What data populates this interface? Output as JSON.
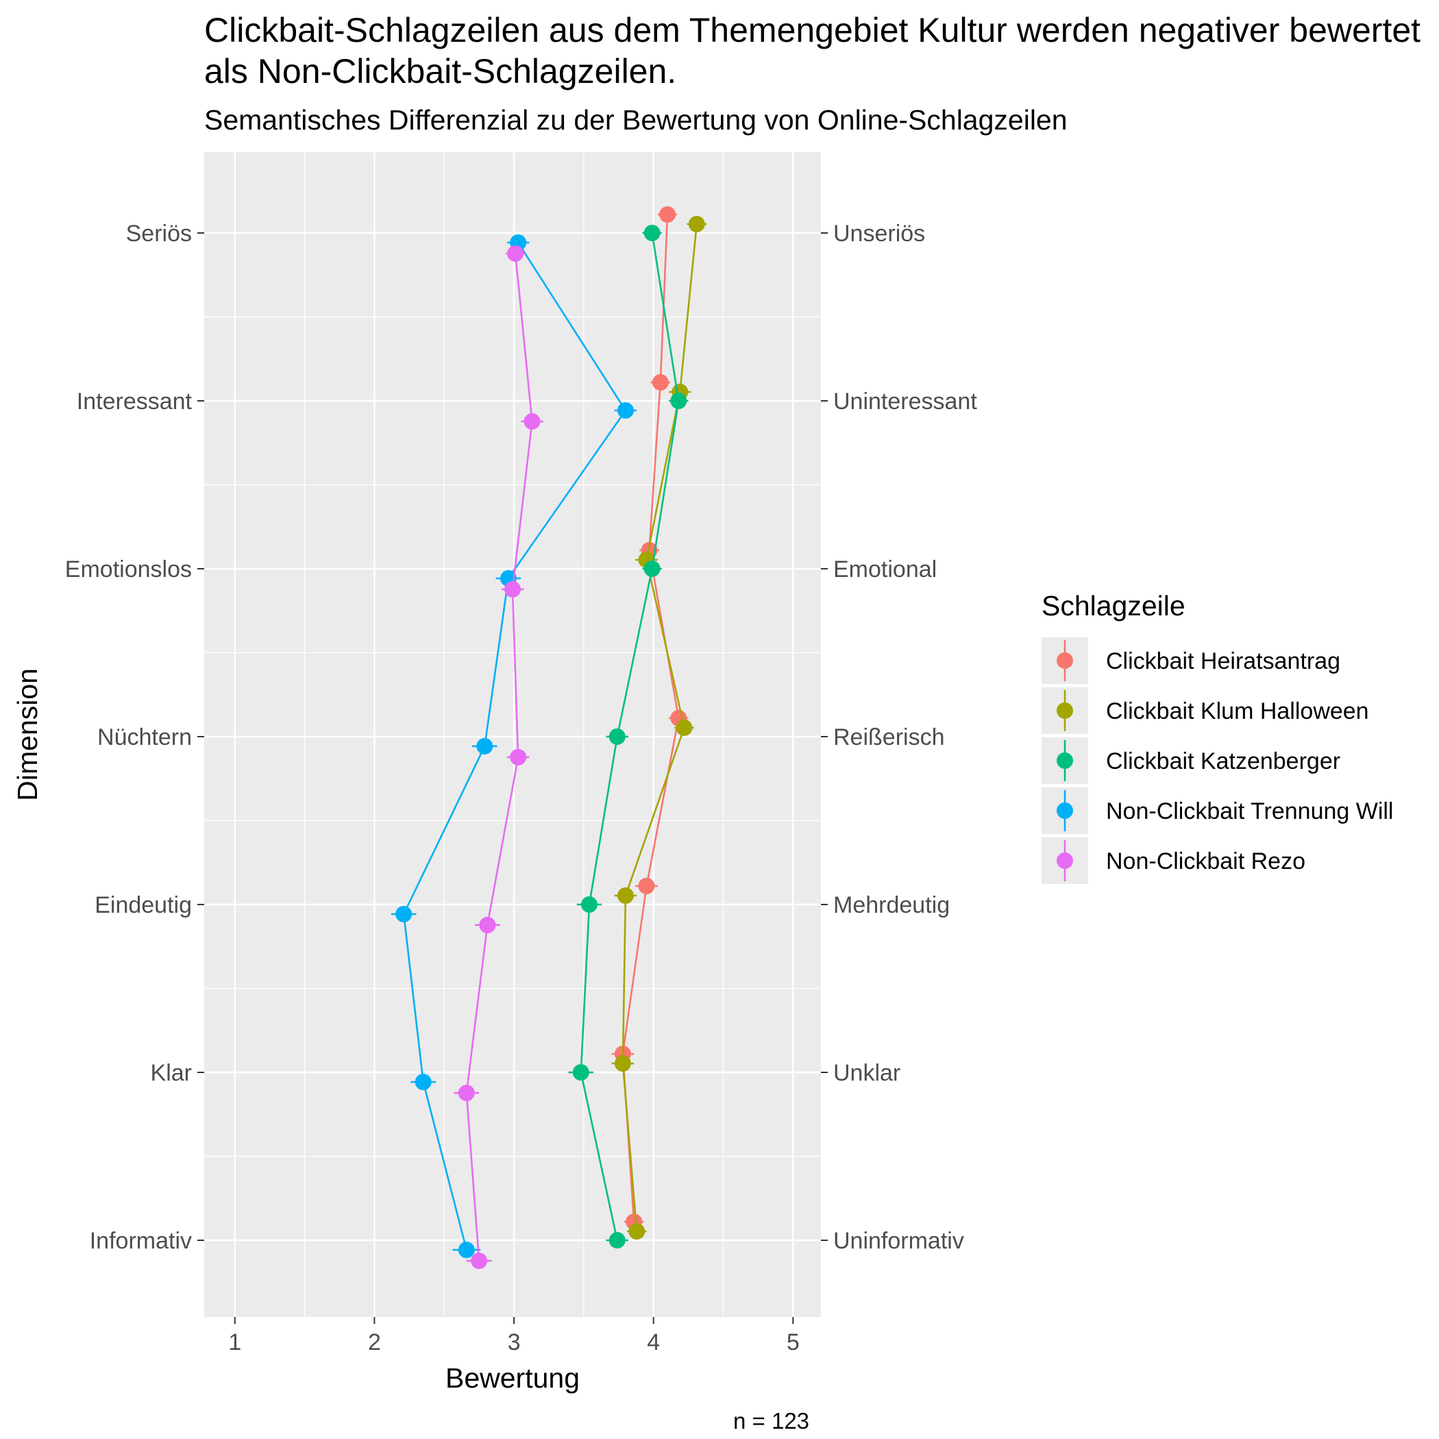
{
  "chart_data": {
    "type": "line",
    "orientation": "horizontal",
    "title": "Clickbait-Schlagzeilen aus dem Themengebiet Kultur werden negativer bewertet als Non-Clickbait-Schlagzeilen.",
    "subtitle": "Semantisches Differenzial zu der Bewertung von Online-Schlagzeilen",
    "caption": "n = 123",
    "xlabel": "Bewertung",
    "ylabel": "Dimension",
    "xlim": [
      0.78,
      5.2
    ],
    "xticks": [
      "1",
      "2",
      "3",
      "4",
      "5"
    ],
    "categories_left": [
      "Seriös",
      "Interessant",
      "Emotionslos",
      "Nüchtern",
      "Eindeutig",
      "Klar",
      "Informativ"
    ],
    "categories_right": [
      "Unseriös",
      "Uninteressant",
      "Emotional",
      "Reißerisch",
      "Mehrdeutig",
      "Unklar",
      "Uninformativ"
    ],
    "grid": true,
    "legend_title": "Schlagzeile",
    "legend_position": "right",
    "series": [
      {
        "name": "Clickbait Heiratsantrag",
        "color": "#F8766D",
        "values": [
          4.1,
          4.05,
          3.97,
          4.18,
          3.95,
          3.78,
          3.86
        ],
        "err": [
          0.07,
          0.07,
          0.07,
          0.07,
          0.08,
          0.08,
          0.07
        ]
      },
      {
        "name": "Clickbait Klum Halloween",
        "color": "#A3A500",
        "values": [
          4.31,
          4.19,
          3.95,
          4.22,
          3.8,
          3.78,
          3.88
        ],
        "err": [
          0.07,
          0.08,
          0.08,
          0.07,
          0.08,
          0.08,
          0.07
        ]
      },
      {
        "name": "Clickbait Katzenberger",
        "color": "#00BF7D",
        "values": [
          3.99,
          4.18,
          3.99,
          3.74,
          3.54,
          3.48,
          3.74
        ],
        "err": [
          0.07,
          0.07,
          0.07,
          0.08,
          0.09,
          0.09,
          0.08
        ]
      },
      {
        "name": "Non-Clickbait Trennung Will",
        "color": "#00B0F6",
        "values": [
          3.03,
          3.8,
          2.96,
          2.79,
          2.21,
          2.35,
          2.66
        ],
        "err": [
          0.08,
          0.08,
          0.09,
          0.09,
          0.09,
          0.09,
          0.1
        ]
      },
      {
        "name": "Non-Clickbait Rezo",
        "color": "#E76BF3",
        "values": [
          3.01,
          3.13,
          2.99,
          3.03,
          2.81,
          2.66,
          2.75
        ],
        "err": [
          0.07,
          0.08,
          0.08,
          0.08,
          0.09,
          0.09,
          0.09
        ]
      }
    ]
  }
}
